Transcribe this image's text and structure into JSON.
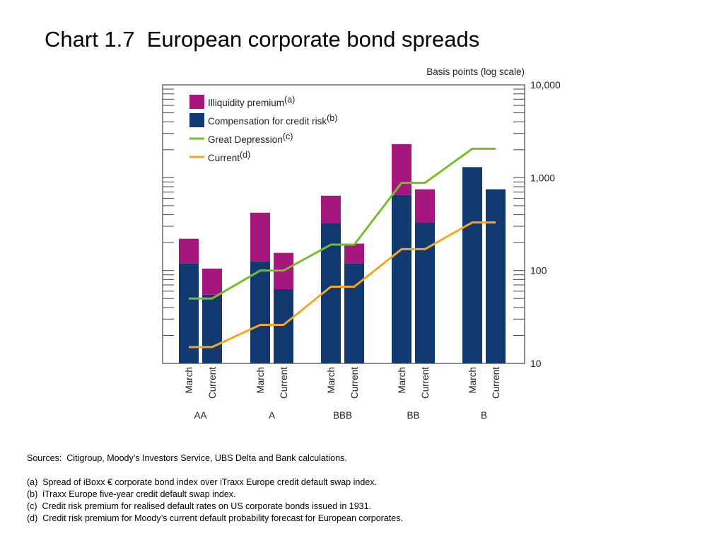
{
  "title": "Chart 1.7  European corporate bond spreads",
  "sources": "Sources:  Citigroup, Moody’s Investors Service, UBS Delta and Bank calculations.",
  "footnotes": [
    "(a)  Spread of iBoxx € corporate bond index over iTraxx Europe credit default swap index.",
    "(b)  iTraxx Europe five-year credit default swap index.",
    "(c)  Credit risk premium for realised default rates on US corporate bonds issued in 1931.",
    "(d)  Credit risk premium for Moody’s current default probability forecast for European corporates."
  ],
  "chart_data": {
    "type": "bar",
    "stacked": true,
    "y_scale": "log",
    "ylabel": "Basis points (log scale)",
    "ylim": [
      10,
      10000
    ],
    "y_ticks": [
      "10,000",
      "1,000",
      "100",
      "10"
    ],
    "y_tick_values": [
      10000,
      1000,
      100,
      10
    ],
    "groups": [
      "AA",
      "A",
      "BBB",
      "BB",
      "B"
    ],
    "bar_labels": [
      "March",
      "Current"
    ],
    "colors": {
      "illiquidity": "#a6177e",
      "credit": "#12396f",
      "depression": "#77bc2c",
      "current": "#f4a623"
    },
    "series": [
      {
        "name": "Compensation for credit risk",
        "note": "(b)",
        "values": [
          [
            120,
            55
          ],
          [
            125,
            63
          ],
          [
            325,
            120
          ],
          [
            650,
            330
          ],
          [
            1300,
            750
          ]
        ]
      },
      {
        "name": "Illiquidity premium",
        "note": "(a)",
        "values": [
          [
            100,
            50
          ],
          [
            295,
            92
          ],
          [
            315,
            75
          ],
          [
            1650,
            420
          ],
          [
            0,
            0
          ]
        ]
      }
    ],
    "lines": [
      {
        "name": "Great Depression",
        "note": "(c)",
        "values": [
          50,
          100,
          190,
          880,
          2050
        ]
      },
      {
        "name": "Current",
        "note": "(d)",
        "values": [
          15,
          26,
          67,
          170,
          330
        ]
      }
    ],
    "legend_position": "top-left"
  }
}
